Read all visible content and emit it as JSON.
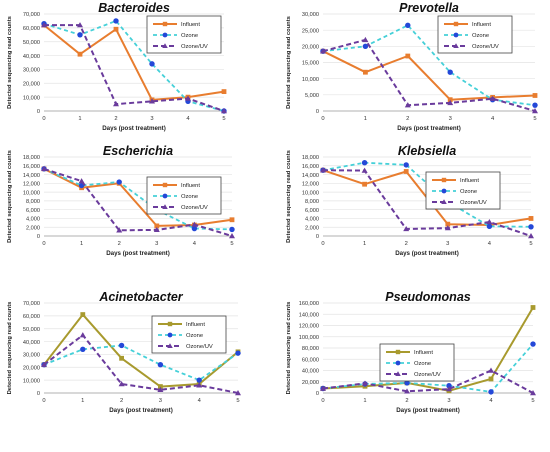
{
  "figure": {
    "colors": {
      "influent": "#e87d2f",
      "influent_alt": "#a89a2e",
      "ozone": "#45d0d8",
      "ozone_marker": "#2448d8",
      "ozone_uv": "#6a3b9c",
      "grid": "#e3e3e3",
      "axis": "#999999"
    }
  },
  "chart_data": [
    {
      "type": "line",
      "title": "Bacteroides",
      "xlabel": "Days (post treatment)",
      "ylabel": "Detected sequencing read counts",
      "x": [
        0,
        1,
        2,
        3,
        4,
        5
      ],
      "xlim": [
        0,
        5
      ],
      "ylim": [
        0,
        70000
      ],
      "yticks": [
        0,
        10000,
        20000,
        30000,
        40000,
        50000,
        60000,
        70000
      ],
      "ytick_labels": [
        "0",
        "10,000",
        "20,000",
        "30,000",
        "40,000",
        "50,000",
        "60,000",
        "70,000"
      ],
      "grid": true,
      "legend_position": "top-right",
      "series": [
        {
          "name": "Influent",
          "values": [
            62000,
            41000,
            59000,
            8000,
            10000,
            14000
          ]
        },
        {
          "name": "Ozone",
          "values": [
            63000,
            55000,
            65000,
            34000,
            7000,
            0
          ]
        },
        {
          "name": "Ozone/UV",
          "values": [
            62000,
            62000,
            5000,
            7000,
            9000,
            0
          ]
        }
      ]
    },
    {
      "type": "line",
      "title": "Prevotella",
      "xlabel": "Days (post treatment)",
      "ylabel": "Detected sequencing read counts",
      "x": [
        0,
        1,
        2,
        3,
        4,
        5
      ],
      "xlim": [
        0,
        5
      ],
      "ylim": [
        0,
        30000
      ],
      "yticks": [
        0,
        5000,
        10000,
        15000,
        20000,
        25000,
        30000
      ],
      "ytick_labels": [
        "0",
        "5,000",
        "10,000",
        "15,000",
        "20,000",
        "25,000",
        "30,000"
      ],
      "grid": true,
      "legend_position": "top-right",
      "series": [
        {
          "name": "Influent",
          "values": [
            18500,
            12000,
            17000,
            3500,
            4200,
            4800
          ]
        },
        {
          "name": "Ozone",
          "values": [
            18500,
            20000,
            26500,
            12000,
            3500,
            1800
          ]
        },
        {
          "name": "Ozone/UV",
          "values": [
            18500,
            22000,
            1800,
            2500,
            3800,
            0
          ]
        }
      ]
    },
    {
      "type": "line",
      "title": "Escherichia",
      "xlabel": "Days (post treatment)",
      "ylabel": "Detected sequencing read counts",
      "x": [
        0,
        1,
        2,
        3,
        4,
        5
      ],
      "xlim": [
        0,
        5
      ],
      "ylim": [
        0,
        18000
      ],
      "yticks": [
        0,
        2000,
        4000,
        6000,
        8000,
        10000,
        12000,
        14000,
        16000,
        18000
      ],
      "ytick_labels": [
        "0",
        "2,000",
        "4,000",
        "6,000",
        "8,000",
        "10,000",
        "12,000",
        "14,000",
        "16,000",
        "18,000"
      ],
      "grid": true,
      "legend_position": "top-right",
      "series": [
        {
          "name": "Influent",
          "values": [
            15300,
            11000,
            12000,
            2300,
            2500,
            3700
          ]
        },
        {
          "name": "Ozone",
          "values": [
            15300,
            11500,
            12300,
            6000,
            1700,
            1500
          ]
        },
        {
          "name": "Ozone/UV",
          "values": [
            15300,
            12500,
            1300,
            1400,
            2600,
            0
          ]
        }
      ]
    },
    {
      "type": "line",
      "title": "Klebsiella",
      "xlabel": "Days (post treatment)",
      "ylabel": "Detected sequencing read counts",
      "x": [
        0,
        1,
        2,
        3,
        4,
        5
      ],
      "xlim": [
        0,
        5
      ],
      "ylim": [
        0,
        18000
      ],
      "yticks": [
        0,
        2000,
        4000,
        6000,
        8000,
        10000,
        12000,
        14000,
        16000,
        18000
      ],
      "ytick_labels": [
        "0",
        "2,000",
        "4,000",
        "6,000",
        "8,000",
        "10,000",
        "12,000",
        "14,000",
        "16,000",
        "18,000"
      ],
      "grid": true,
      "legend_position": "top-right",
      "series": [
        {
          "name": "Influent",
          "values": [
            15000,
            11800,
            14700,
            2700,
            2500,
            4000
          ]
        },
        {
          "name": "Ozone",
          "values": [
            15000,
            16700,
            16200,
            7800,
            2200,
            2100
          ]
        },
        {
          "name": "Ozone/UV",
          "values": [
            15000,
            14900,
            1600,
            1800,
            3200,
            0
          ]
        }
      ]
    },
    {
      "type": "line",
      "title": "Acinetobacter",
      "xlabel": "Days (post treatment)",
      "ylabel": "Detected sequencing read counts",
      "x": [
        0,
        1,
        2,
        3,
        4,
        5
      ],
      "xlim": [
        0,
        5
      ],
      "ylim": [
        0,
        70000
      ],
      "yticks": [
        0,
        10000,
        20000,
        30000,
        40000,
        50000,
        60000,
        70000
      ],
      "ytick_labels": [
        "0",
        "10,000",
        "20,000",
        "30,000",
        "40,000",
        "50,000",
        "60,000",
        "70,000"
      ],
      "grid": true,
      "legend_position": "top-right",
      "series": [
        {
          "name": "Influent",
          "values": [
            22000,
            61000,
            27000,
            5000,
            7000,
            32000
          ]
        },
        {
          "name": "Ozone",
          "values": [
            22000,
            34000,
            37000,
            22000,
            10000,
            31000
          ]
        },
        {
          "name": "Ozone/UV",
          "values": [
            22000,
            45000,
            7000,
            2500,
            6000,
            0
          ]
        }
      ]
    },
    {
      "type": "line",
      "title": "Pseudomonas",
      "xlabel": "Days (post treatment)",
      "ylabel": "Detected sequencing read counts",
      "x": [
        0,
        1,
        2,
        3,
        4,
        5
      ],
      "xlim": [
        0,
        5
      ],
      "ylim": [
        0,
        160000
      ],
      "yticks": [
        0,
        20000,
        40000,
        60000,
        80000,
        100000,
        120000,
        140000,
        160000
      ],
      "ytick_labels": [
        "0",
        "20,000",
        "40,000",
        "60,000",
        "80,000",
        "100,000",
        "120,000",
        "140,000",
        "160,000"
      ],
      "grid": true,
      "legend_position": "top-left",
      "series": [
        {
          "name": "Influent",
          "values": [
            8000,
            12000,
            18000,
            4000,
            25000,
            152000
          ]
        },
        {
          "name": "Ozone",
          "values": [
            8000,
            16000,
            18000,
            13000,
            2000,
            87000
          ]
        },
        {
          "name": "Ozone/UV",
          "values": [
            8000,
            17000,
            3000,
            7000,
            40000,
            0
          ]
        }
      ]
    }
  ]
}
